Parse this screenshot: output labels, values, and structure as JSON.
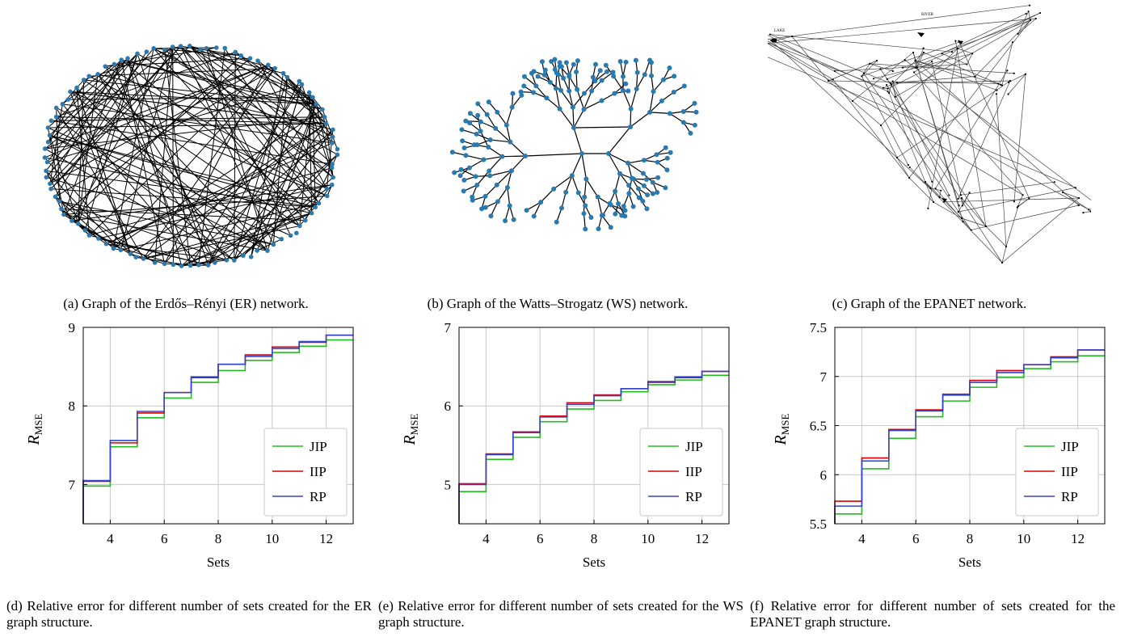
{
  "captions": {
    "a": "(a) Graph of the Erdős–Rényi (ER) network.",
    "b": "(b) Graph of the Watts–Strogatz (WS) network.",
    "c": "(c) Graph of the EPANET network.",
    "d": "(d) Relative error for different number of sets created for the ER graph structure.",
    "e": "(e) Relative error for different number of sets created for the WS graph structure.",
    "f": "(f) Relative error for different number of sets created for the EPANET graph structure."
  },
  "epanet_labels": {
    "lake": "LAKE",
    "river": "RIVER"
  },
  "colors": {
    "jip": "#22bb22",
    "iip": "#dd0000",
    "rp": "#3344cc",
    "node": "#2a7ab0"
  },
  "chart_data": [
    {
      "type": "line",
      "style": "step",
      "xlabel": "Sets",
      "ylabel": "R",
      "ylabel_sub": "MSE",
      "xlim": [
        3,
        13
      ],
      "ylim": [
        6.5,
        9
      ],
      "xticks": [
        4,
        6,
        8,
        10,
        12
      ],
      "xtick_labels": [
        "4",
        "6",
        "8",
        "10",
        "12"
      ],
      "yticks": [
        7,
        8,
        9
      ],
      "ytick_labels": [
        "7",
        "8",
        "9"
      ],
      "grid": true,
      "legend_position": "bottom-right",
      "x": [
        3,
        4,
        5,
        6,
        7,
        8,
        9,
        10,
        11,
        12
      ],
      "series": [
        {
          "name": "JIP",
          "values": [
            6.98,
            7.48,
            7.85,
            8.1,
            8.3,
            8.45,
            8.58,
            8.68,
            8.76,
            8.84
          ]
        },
        {
          "name": "IIP",
          "values": [
            7.04,
            7.53,
            7.91,
            8.17,
            8.36,
            8.53,
            8.65,
            8.75,
            8.81,
            8.9
          ]
        },
        {
          "name": "RP",
          "values": [
            7.05,
            7.56,
            7.93,
            8.17,
            8.37,
            8.53,
            8.63,
            8.73,
            8.82,
            8.9
          ]
        }
      ]
    },
    {
      "type": "line",
      "style": "step",
      "xlabel": "Sets",
      "ylabel": "R",
      "ylabel_sub": "MSE",
      "xlim": [
        3,
        13
      ],
      "ylim": [
        4.5,
        7
      ],
      "xticks": [
        4,
        6,
        8,
        10,
        12
      ],
      "xtick_labels": [
        "4",
        "6",
        "8",
        "10",
        "12"
      ],
      "yticks": [
        5,
        6,
        7
      ],
      "ytick_labels": [
        "5",
        "6",
        "7"
      ],
      "grid": true,
      "legend_position": "bottom-right",
      "x": [
        3,
        4,
        5,
        6,
        7,
        8,
        9,
        10,
        11,
        12
      ],
      "series": [
        {
          "name": "JIP",
          "values": [
            4.91,
            5.32,
            5.6,
            5.8,
            5.96,
            6.07,
            6.18,
            6.27,
            6.33,
            6.39
          ]
        },
        {
          "name": "IIP",
          "values": [
            5.01,
            5.39,
            5.67,
            5.87,
            6.04,
            6.14,
            6.22,
            6.31,
            6.36,
            6.44
          ]
        },
        {
          "name": "RP",
          "values": [
            5.0,
            5.38,
            5.66,
            5.86,
            6.02,
            6.13,
            6.22,
            6.3,
            6.37,
            6.44
          ]
        }
      ]
    },
    {
      "type": "line",
      "style": "step",
      "xlabel": "Sets",
      "ylabel": "R",
      "ylabel_sub": "MSE",
      "xlim": [
        3,
        13
      ],
      "ylim": [
        5.5,
        7.5
      ],
      "xticks": [
        4,
        6,
        8,
        10,
        12
      ],
      "xtick_labels": [
        "4",
        "6",
        "8",
        "10",
        "12"
      ],
      "yticks": [
        5.5,
        6,
        6.5,
        7,
        7.5
      ],
      "ytick_labels": [
        "5.5",
        "6",
        "6.5",
        "7",
        "7.5"
      ],
      "grid": true,
      "legend_position": "bottom-right",
      "x": [
        3,
        4,
        5,
        6,
        7,
        8,
        9,
        10,
        11,
        12
      ],
      "series": [
        {
          "name": "JIP",
          "values": [
            5.6,
            6.06,
            6.37,
            6.59,
            6.75,
            6.89,
            6.99,
            7.08,
            7.15,
            7.21
          ]
        },
        {
          "name": "IIP",
          "values": [
            5.73,
            6.17,
            6.46,
            6.66,
            6.82,
            6.96,
            7.06,
            7.12,
            7.2,
            7.27
          ]
        },
        {
          "name": "RP",
          "values": [
            5.68,
            6.14,
            6.45,
            6.65,
            6.81,
            6.94,
            7.04,
            7.12,
            7.19,
            7.27
          ]
        }
      ]
    }
  ]
}
